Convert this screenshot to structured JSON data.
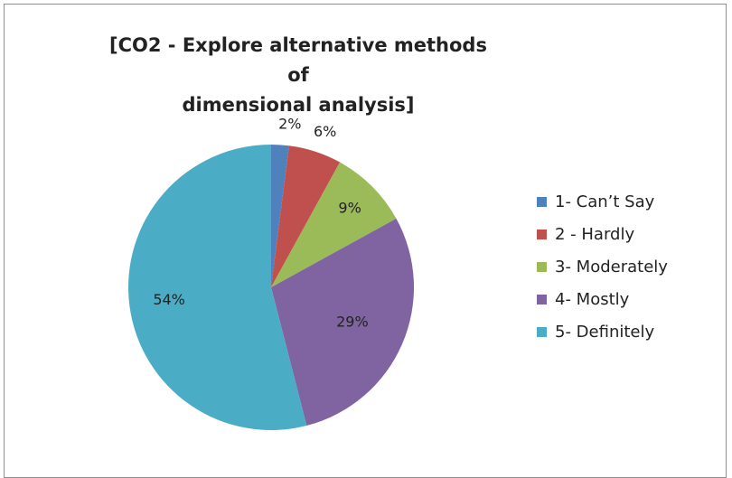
{
  "chart_data": {
    "type": "pie",
    "title": "[CO2 - Explore alternative methods of dimensional analysis]",
    "title_lines": [
      "[CO2 - Explore alternative methods of",
      "dimensional analysis]"
    ],
    "categories": [
      "1- Can’t Say",
      "2 - Hardly",
      "3- Moderately",
      "4- Mostly",
      "5- Definitely"
    ],
    "values": [
      2,
      6,
      9,
      29,
      54
    ],
    "value_labels": [
      "2%",
      "6%",
      "9%",
      "29%",
      "54%"
    ],
    "colors": [
      "#4f81bd",
      "#c0504d",
      "#9bbb59",
      "#8064a2",
      "#4bacc6"
    ],
    "legend_position": "right",
    "start_angle": "top",
    "direction": "clockwise"
  }
}
